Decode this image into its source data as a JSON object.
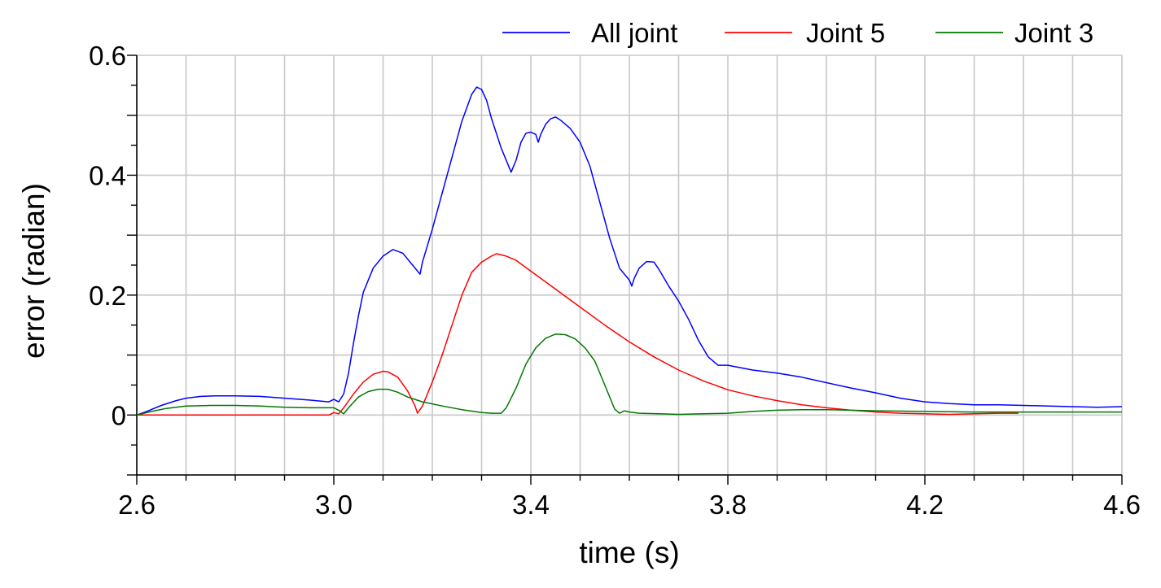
{
  "chart_data": {
    "type": "line",
    "title": "",
    "xlabel": "time (s)",
    "ylabel": "error (radian)",
    "xlim": [
      2.6,
      4.6
    ],
    "ylim": [
      -0.1,
      0.6
    ],
    "grid": true,
    "legend_position": "top-right",
    "x_tick_labels": [
      "2.6",
      "3.0",
      "3.4",
      "3.8",
      "4.2",
      "4.6"
    ],
    "y_tick_labels": [
      "0",
      "0.2",
      "0.4",
      "0.6"
    ],
    "series": [
      {
        "name": "All joint",
        "color": "#0000ff",
        "points": [
          [
            2.6,
            0.0
          ],
          [
            2.62,
            0.006
          ],
          [
            2.65,
            0.016
          ],
          [
            2.68,
            0.024
          ],
          [
            2.7,
            0.028
          ],
          [
            2.73,
            0.031
          ],
          [
            2.76,
            0.032
          ],
          [
            2.8,
            0.032
          ],
          [
            2.85,
            0.031
          ],
          [
            2.9,
            0.028
          ],
          [
            2.95,
            0.025
          ],
          [
            2.99,
            0.022
          ],
          [
            3.0,
            0.026
          ],
          [
            3.01,
            0.022
          ],
          [
            3.02,
            0.035
          ],
          [
            3.03,
            0.07
          ],
          [
            3.04,
            0.12
          ],
          [
            3.05,
            0.165
          ],
          [
            3.06,
            0.205
          ],
          [
            3.08,
            0.245
          ],
          [
            3.1,
            0.265
          ],
          [
            3.12,
            0.276
          ],
          [
            3.14,
            0.27
          ],
          [
            3.16,
            0.25
          ],
          [
            3.175,
            0.235
          ],
          [
            3.18,
            0.255
          ],
          [
            3.2,
            0.31
          ],
          [
            3.22,
            0.37
          ],
          [
            3.24,
            0.43
          ],
          [
            3.26,
            0.49
          ],
          [
            3.28,
            0.535
          ],
          [
            3.29,
            0.547
          ],
          [
            3.3,
            0.543
          ],
          [
            3.31,
            0.525
          ],
          [
            3.32,
            0.495
          ],
          [
            3.34,
            0.445
          ],
          [
            3.36,
            0.405
          ],
          [
            3.37,
            0.425
          ],
          [
            3.38,
            0.455
          ],
          [
            3.39,
            0.47
          ],
          [
            3.4,
            0.472
          ],
          [
            3.41,
            0.468
          ],
          [
            3.415,
            0.455
          ],
          [
            3.42,
            0.468
          ],
          [
            3.43,
            0.485
          ],
          [
            3.44,
            0.494
          ],
          [
            3.45,
            0.497
          ],
          [
            3.46,
            0.492
          ],
          [
            3.48,
            0.478
          ],
          [
            3.5,
            0.455
          ],
          [
            3.52,
            0.415
          ],
          [
            3.54,
            0.355
          ],
          [
            3.56,
            0.295
          ],
          [
            3.58,
            0.245
          ],
          [
            3.59,
            0.235
          ],
          [
            3.6,
            0.225
          ],
          [
            3.605,
            0.215
          ],
          [
            3.61,
            0.228
          ],
          [
            3.62,
            0.245
          ],
          [
            3.635,
            0.256
          ],
          [
            3.65,
            0.255
          ],
          [
            3.66,
            0.243
          ],
          [
            3.68,
            0.215
          ],
          [
            3.7,
            0.19
          ],
          [
            3.72,
            0.16
          ],
          [
            3.74,
            0.125
          ],
          [
            3.76,
            0.097
          ],
          [
            3.78,
            0.083
          ],
          [
            3.8,
            0.083
          ],
          [
            3.85,
            0.075
          ],
          [
            3.9,
            0.07
          ],
          [
            3.95,
            0.063
          ],
          [
            4.0,
            0.054
          ],
          [
            4.05,
            0.045
          ],
          [
            4.1,
            0.037
          ],
          [
            4.15,
            0.028
          ],
          [
            4.2,
            0.022
          ],
          [
            4.25,
            0.019
          ],
          [
            4.3,
            0.017
          ],
          [
            4.35,
            0.017
          ],
          [
            4.4,
            0.016
          ],
          [
            4.45,
            0.015
          ],
          [
            4.5,
            0.014
          ],
          [
            4.55,
            0.013
          ],
          [
            4.6,
            0.014
          ]
        ]
      },
      {
        "name": "Joint 5",
        "color": "#ff0000",
        "points": [
          [
            2.6,
            0.0
          ],
          [
            2.8,
            0.0
          ],
          [
            2.99,
            0.0
          ],
          [
            3.0,
            0.004
          ],
          [
            3.01,
            0.002
          ],
          [
            3.02,
            0.012
          ],
          [
            3.04,
            0.035
          ],
          [
            3.06,
            0.055
          ],
          [
            3.08,
            0.068
          ],
          [
            3.1,
            0.073
          ],
          [
            3.11,
            0.072
          ],
          [
            3.13,
            0.063
          ],
          [
            3.15,
            0.04
          ],
          [
            3.165,
            0.015
          ],
          [
            3.17,
            0.003
          ],
          [
            3.18,
            0.015
          ],
          [
            3.2,
            0.055
          ],
          [
            3.22,
            0.1
          ],
          [
            3.24,
            0.15
          ],
          [
            3.26,
            0.2
          ],
          [
            3.28,
            0.238
          ],
          [
            3.3,
            0.255
          ],
          [
            3.32,
            0.265
          ],
          [
            3.33,
            0.269
          ],
          [
            3.35,
            0.265
          ],
          [
            3.37,
            0.258
          ],
          [
            3.4,
            0.24
          ],
          [
            3.45,
            0.21
          ],
          [
            3.5,
            0.18
          ],
          [
            3.55,
            0.15
          ],
          [
            3.6,
            0.122
          ],
          [
            3.65,
            0.097
          ],
          [
            3.7,
            0.075
          ],
          [
            3.75,
            0.057
          ],
          [
            3.8,
            0.042
          ],
          [
            3.85,
            0.032
          ],
          [
            3.9,
            0.024
          ],
          [
            3.95,
            0.017
          ],
          [
            4.0,
            0.012
          ],
          [
            4.05,
            0.008
          ],
          [
            4.1,
            0.005
          ],
          [
            4.15,
            0.003
          ],
          [
            4.2,
            0.002
          ],
          [
            4.25,
            0.001
          ],
          [
            4.3,
            0.002
          ],
          [
            4.35,
            0.003
          ],
          [
            4.39,
            0.003
          ]
        ]
      },
      {
        "name": "Joint 3",
        "color": "#007800",
        "points": [
          [
            2.6,
            0.0
          ],
          [
            2.63,
            0.006
          ],
          [
            2.66,
            0.011
          ],
          [
            2.7,
            0.015
          ],
          [
            2.75,
            0.016
          ],
          [
            2.8,
            0.016
          ],
          [
            2.85,
            0.015
          ],
          [
            2.9,
            0.013
          ],
          [
            2.95,
            0.012
          ],
          [
            3.0,
            0.012
          ],
          [
            3.01,
            0.008
          ],
          [
            3.02,
            0.002
          ],
          [
            3.03,
            0.012
          ],
          [
            3.05,
            0.03
          ],
          [
            3.07,
            0.039
          ],
          [
            3.09,
            0.043
          ],
          [
            3.11,
            0.043
          ],
          [
            3.13,
            0.038
          ],
          [
            3.15,
            0.03
          ],
          [
            3.18,
            0.022
          ],
          [
            3.22,
            0.015
          ],
          [
            3.26,
            0.009
          ],
          [
            3.3,
            0.004
          ],
          [
            3.32,
            0.003
          ],
          [
            3.34,
            0.003
          ],
          [
            3.35,
            0.012
          ],
          [
            3.37,
            0.045
          ],
          [
            3.39,
            0.085
          ],
          [
            3.41,
            0.112
          ],
          [
            3.43,
            0.128
          ],
          [
            3.45,
            0.135
          ],
          [
            3.47,
            0.134
          ],
          [
            3.49,
            0.127
          ],
          [
            3.51,
            0.112
          ],
          [
            3.53,
            0.09
          ],
          [
            3.55,
            0.05
          ],
          [
            3.57,
            0.01
          ],
          [
            3.58,
            0.003
          ],
          [
            3.59,
            0.007
          ],
          [
            3.6,
            0.005
          ],
          [
            3.62,
            0.003
          ],
          [
            3.66,
            0.002
          ],
          [
            3.7,
            0.001
          ],
          [
            3.75,
            0.002
          ],
          [
            3.8,
            0.003
          ],
          [
            3.85,
            0.006
          ],
          [
            3.9,
            0.008
          ],
          [
            3.95,
            0.009
          ],
          [
            4.0,
            0.009
          ],
          [
            4.05,
            0.008
          ],
          [
            4.1,
            0.007
          ],
          [
            4.2,
            0.006
          ],
          [
            4.3,
            0.005
          ],
          [
            4.4,
            0.005
          ],
          [
            4.5,
            0.005
          ],
          [
            4.6,
            0.005
          ]
        ]
      }
    ]
  }
}
